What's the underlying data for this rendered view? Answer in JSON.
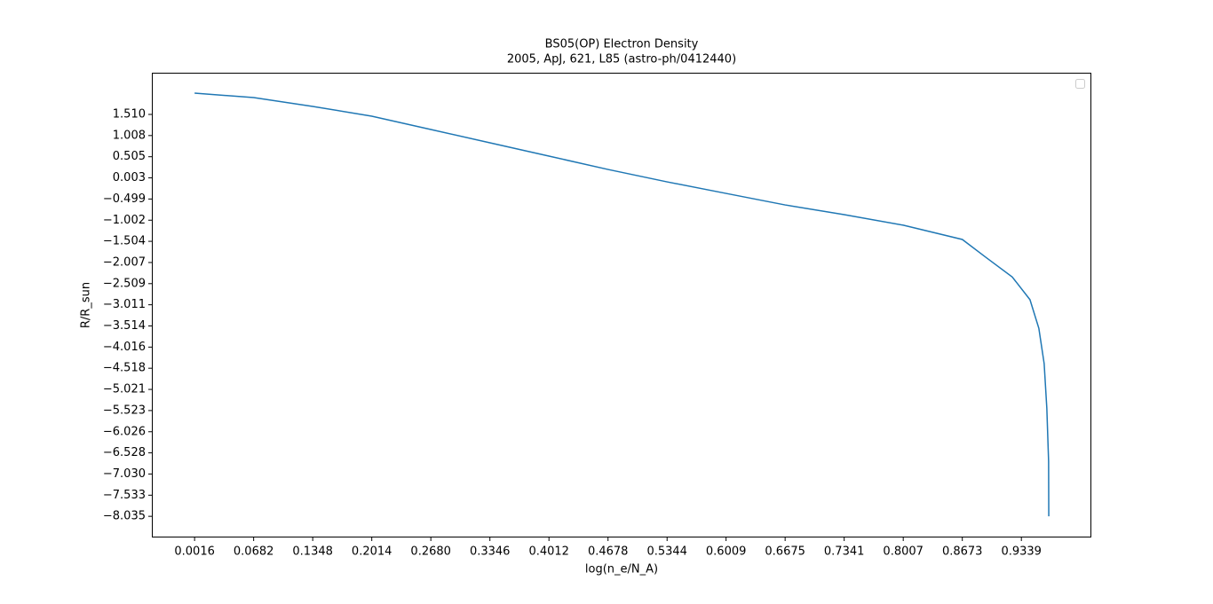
{
  "chart_data": {
    "type": "line",
    "title": "BS05(OP) Electron Density",
    "subtitle": "2005, ApJ, 621, L85 (astro-ph/0412440)",
    "x_label": "log(n_e/N_A)",
    "y_label": "R/R_sun",
    "x": [
      0.0016,
      0.0682,
      0.1348,
      0.2014,
      0.268,
      0.3346,
      0.4012,
      0.4678,
      0.5344,
      0.6009,
      0.6675,
      0.7341,
      0.8007,
      0.8673,
      0.8936,
      0.9236,
      0.9436,
      0.9536,
      0.9596,
      0.9626,
      0.9646,
      0.9648
    ],
    "series": [
      {
        "color": "#1f77b4",
        "values": [
          2.016,
          1.91,
          1.7,
          1.468,
          1.152,
          0.836,
          0.52,
          0.203,
          -0.092,
          -0.366,
          -0.64,
          -0.871,
          -1.12,
          -1.46,
          -1.88,
          -2.35,
          -2.89,
          -3.57,
          -4.41,
          -5.47,
          -6.73,
          -8.035
        ]
      }
    ],
    "xlim": [
      -0.0466,
      1.0128
    ],
    "ylim": [
      -8.5375,
      2.5
    ],
    "xticks": [
      0.0016,
      0.0682,
      0.1348,
      0.2014,
      {
        "value": 0.268,
        "label": "0.2680"
      },
      0.3346,
      0.4012,
      0.4678,
      0.5344,
      0.6009,
      0.6675,
      0.7341,
      0.8007,
      0.8673,
      0.9339
    ],
    "yticks": [
      {
        "value": 1.51,
        "label": "1.510"
      },
      1.008,
      0.505,
      0.003,
      {
        "value": -0.499,
        "label": "−0.499"
      },
      {
        "value": -1.002,
        "label": "−1.002"
      },
      {
        "value": -1.504,
        "label": "−1.504"
      },
      {
        "value": -2.007,
        "label": "−2.007"
      },
      {
        "value": -2.509,
        "label": "−2.509"
      },
      {
        "value": -3.011,
        "label": "−3.011"
      },
      {
        "value": -3.514,
        "label": "−3.514"
      },
      {
        "value": -4.016,
        "label": "−4.016"
      },
      {
        "value": -4.518,
        "label": "−4.518"
      },
      {
        "value": -5.021,
        "label": "−5.021"
      },
      {
        "value": -5.523,
        "label": "−5.523"
      },
      {
        "value": -6.026,
        "label": "−6.026"
      },
      {
        "value": -6.528,
        "label": "−6.528"
      },
      {
        "value": -7.03,
        "label": "−7.030"
      },
      {
        "value": -7.533,
        "label": "−7.533"
      },
      {
        "value": -8.035,
        "label": "−8.035"
      }
    ],
    "grid": false
  }
}
